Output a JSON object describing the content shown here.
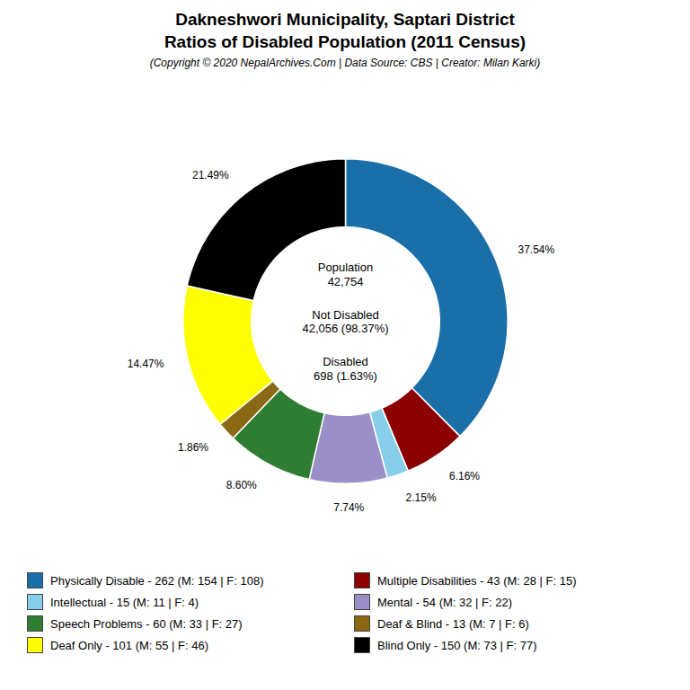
{
  "chart_data": {
    "type": "donut",
    "title": "Dakneshwori Municipality, Saptari District\nRatios of Disabled Population (2011 Census)",
    "subtitle": "(Copyright © 2020 NepalArchives.Com | Data Source: CBS | Creator: Milan Karki)",
    "categories": [
      "Physically Disable - 262 (M: 154 | F: 108)",
      "Multiple Disabilities - 43 (M: 28 | F: 15)",
      "Intellectual - 15 (M: 11 | F: 4)",
      "Mental - 54 (M: 32 | F: 22)",
      "Speech Problems - 60 (M: 33 | F: 27)",
      "Deaf & Blind - 13 (M: 7 | F: 6)",
      "Deaf Only - 101 (M: 55 | F: 46)",
      "Blind Only - 150 (M: 73 | F: 77)"
    ],
    "values": [
      37.54,
      6.16,
      2.15,
      7.74,
      8.6,
      1.86,
      14.47,
      21.49
    ],
    "value_labels": [
      "37.54%",
      "6.16%",
      "2.15%",
      "7.74%",
      "8.60%",
      "1.86%",
      "14.47%",
      "21.49%"
    ],
    "colors": [
      "#1a6fa8",
      "#8b0000",
      "#87ceeb",
      "#9b8fc7",
      "#2e7d32",
      "#8b6914",
      "#ffff00",
      "#000000"
    ],
    "annotations": [
      "Population\n42,754",
      "Not Disabled\n42,056 (98.37%)",
      "Disabled\n698 (1.63%)"
    ],
    "data_labels": true,
    "legend": "bottom"
  }
}
